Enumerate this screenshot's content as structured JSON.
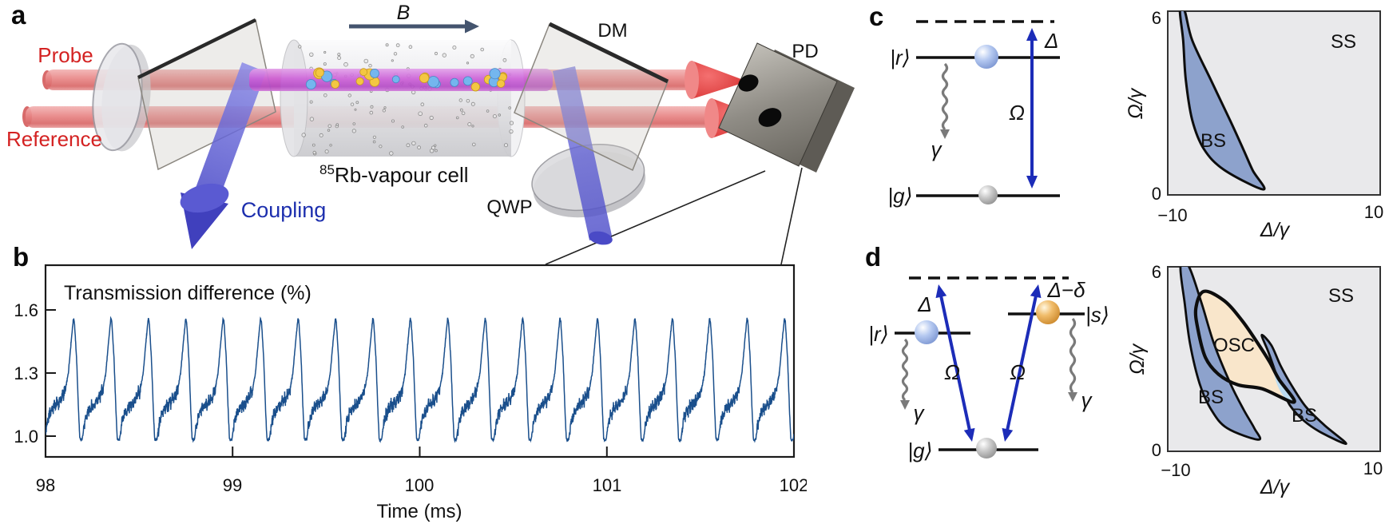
{
  "colors": {
    "label_red": "#d42222",
    "coupling_blue": "#1d2fae",
    "arrow_blue": "#1c2cb8",
    "beam_blue_dark": "#4343c4",
    "trace_blue": "#1a4f8c",
    "b_field_arrow": "#44546e",
    "bs_fill": "#8da2cc",
    "osc_fill": "#f9e6cb",
    "overlap_fill": "#bcdcf2",
    "phase_bg": "#e9e9eb",
    "outline": "#0d0d0d"
  },
  "panel_a": {
    "letter": "a",
    "labels": {
      "probe": "Probe",
      "reference": "Reference",
      "coupling": "Coupling",
      "b_field": "B",
      "dm": "DM",
      "qwp": "QWP",
      "pd": "PD",
      "cell_sup": "85",
      "cell_main": "Rb-vapour cell"
    }
  },
  "panel_b": {
    "letter": "b",
    "title": "Transmission difference (%)",
    "xlabel": "Time (ms)",
    "x_ticks": [
      "98",
      "99",
      "100",
      "101",
      "102"
    ],
    "y_ticks": [
      "1.6",
      "1.3",
      "1.0"
    ]
  },
  "panel_c": {
    "letter": "c",
    "levels": {
      "r": "|r⟩",
      "g": "|g⟩",
      "gamma": "γ",
      "omega": "Ω",
      "delta": "Δ"
    },
    "phase_labels": {
      "ss": "SS",
      "bs": "BS",
      "xlabel": "Δ/γ",
      "ylabel": "Ω/γ",
      "x_tick_min": "−10",
      "x_tick_max": "10",
      "y_tick_min": "0",
      "y_tick_max": "6"
    }
  },
  "panel_d": {
    "letter": "d",
    "levels": {
      "r": "|r⟩",
      "s": "|s⟩",
      "g": "|g⟩",
      "gamma": "γ",
      "omega": "Ω",
      "delta": "Δ",
      "delta_minus_delta": "Δ−δ"
    },
    "phase_labels": {
      "ss": "SS",
      "bs_left": "BS",
      "bs_right": "BS",
      "osc": "OSC",
      "xlabel": "Δ/γ",
      "ylabel": "Ω/γ",
      "x_tick_min": "−10",
      "x_tick_max": "10",
      "y_tick_min": "0",
      "y_tick_max": "6"
    }
  },
  "chart_data": [
    {
      "id": "panel_b_trace",
      "type": "line",
      "title": "Transmission difference (%)",
      "xlabel": "Time (ms)",
      "x_range": [
        98,
        102
      ],
      "x_ticks": [
        98,
        99,
        100,
        101,
        102
      ],
      "y_ticks": [
        1.0,
        1.3,
        1.6
      ],
      "grid": false,
      "series": [
        {
          "name": "transmission_difference_pct",
          "description": "periodic relaxation-oscillation waveform: noisy slow rise from ~0.99 to ~1.2, fast rise to sharp peak ~1.56, steep fall, repeating every 0.2 ms (20 cycles shown)",
          "period_ms": 0.2,
          "phase_origin_ms": 97.996,
          "first_peak_ms": 98.15,
          "n_cycles": 20,
          "min": 0.985,
          "plateau": 1.18,
          "peak": 1.56,
          "cycle_shape": [
            [
              0,
              0.985
            ],
            [
              0.05,
              1.05
            ],
            [
              0.12,
              1.1
            ],
            [
              0.22,
              1.135
            ],
            [
              0.34,
              1.155
            ],
            [
              0.46,
              1.185
            ],
            [
              0.55,
              1.22
            ],
            [
              0.63,
              1.3
            ],
            [
              0.71,
              1.46
            ],
            [
              0.765,
              1.56
            ],
            [
              0.79,
              1.545
            ],
            [
              0.85,
              1.37
            ],
            [
              0.9,
              1.13
            ],
            [
              0.935,
              0.99
            ],
            [
              0.96,
              0.98
            ],
            [
              1,
              0.985
            ]
          ],
          "noise_plateau": 0.02,
          "noise_base": 0.005,
          "points": 4200
        }
      ]
    },
    {
      "id": "panel_c_phase",
      "type": "area",
      "xlabel": "Δ/γ",
      "ylabel": "Ω/γ",
      "x_range": [
        -10,
        10
      ],
      "y_range": [
        0,
        6
      ],
      "x_ticks": [
        -10,
        10
      ],
      "y_ticks": [
        0,
        6
      ],
      "regions": [
        {
          "name": "SS",
          "label": "SS",
          "note": "steady state — whole background"
        },
        {
          "name": "BS",
          "label": "BS",
          "note": "bistable crescent",
          "points": [
            [
              -8.85,
              6
            ],
            [
              -8.4,
              6
            ],
            [
              -7.7,
              5.05
            ],
            [
              -5.95,
              3.76
            ],
            [
              -4.15,
              2.45
            ],
            [
              -2.9,
              1.5
            ],
            [
              -2.0,
              0.8
            ],
            [
              -1.0,
              0.18
            ],
            [
              -4.7,
              0.82
            ],
            [
              -6.6,
              1.5
            ],
            [
              -7.7,
              2.45
            ],
            [
              -8.3,
              3.76
            ],
            [
              -8.55,
              5.05
            ]
          ]
        }
      ]
    },
    {
      "id": "panel_d_phase",
      "type": "area",
      "xlabel": "Δ/γ",
      "ylabel": "Ω/γ",
      "x_range": [
        -10,
        10
      ],
      "y_range": [
        0,
        6
      ],
      "x_ticks": [
        -10,
        10
      ],
      "y_ticks": [
        0,
        6
      ],
      "regions": [
        {
          "name": "SS",
          "label": "SS",
          "note": "steady state — whole background"
        },
        {
          "name": "BS_left",
          "label": "BS",
          "points": [
            [
              -8.8,
              6
            ],
            [
              -8.0,
              6
            ],
            [
              -6.8,
              4.8
            ],
            [
              -5.65,
              3.5
            ],
            [
              -4.1,
              2.2
            ],
            [
              -2.85,
              1.35
            ],
            [
              -1.85,
              0.75
            ],
            [
              -1.45,
              0.38
            ],
            [
              -4.4,
              0.75
            ],
            [
              -5.9,
              1.35
            ],
            [
              -7.0,
              2.2
            ],
            [
              -7.9,
              3.5
            ],
            [
              -8.4,
              4.8
            ]
          ]
        },
        {
          "name": "OSC",
          "label": "OSC",
          "points": [
            [
              -6.6,
              5.2
            ],
            [
              -4.7,
              4.9
            ],
            [
              -3.0,
              4.25
            ],
            [
              -1.5,
              3.5
            ],
            [
              -0.4,
              2.9
            ],
            [
              0.45,
              2.35
            ],
            [
              1.9,
              1.6
            ],
            [
              -1.1,
              2.03
            ],
            [
              -3.4,
              2.16
            ],
            [
              -5.2,
              2.5
            ],
            [
              -6.45,
              3.05
            ],
            [
              -7.15,
              3.95
            ],
            [
              -7.35,
              4.65
            ]
          ]
        },
        {
          "name": "BS_right",
          "label": "BS",
          "points": [
            [
              -1.15,
              3.78
            ],
            [
              -0.25,
              3.45
            ],
            [
              0.6,
              2.8
            ],
            [
              1.65,
              2.15
            ],
            [
              3.0,
              1.45
            ],
            [
              4.75,
              0.85
            ],
            [
              6.8,
              0.25
            ],
            [
              4.5,
              0.6
            ],
            [
              2.8,
              1.0
            ],
            [
              1.5,
              1.5
            ],
            [
              0.6,
              2.15
            ],
            [
              0.0,
              2.72
            ],
            [
              -0.55,
              3.25
            ]
          ]
        },
        {
          "name": "OSC_BS_overlap",
          "label": "",
          "points": [
            [
              -0.1,
              2.8
            ],
            [
              0.75,
              2.25
            ],
            [
              1.85,
              1.63
            ],
            [
              0.95,
              1.78
            ],
            [
              0.25,
              2.22
            ]
          ]
        }
      ]
    }
  ]
}
